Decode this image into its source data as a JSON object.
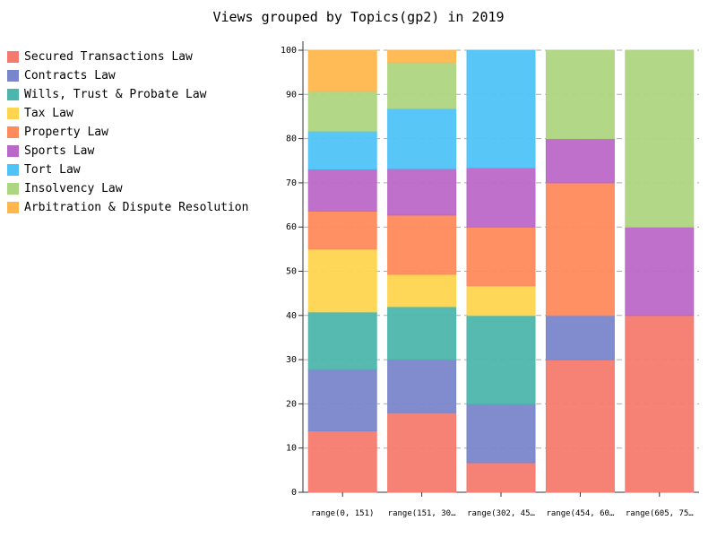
{
  "chart_data": {
    "type": "bar",
    "stacked": true,
    "title": "Views grouped by Topics(gp2) in 2019",
    "xlabel": "",
    "ylabel": "",
    "ylim": [
      0,
      100
    ],
    "yticks": [
      0,
      10,
      20,
      30,
      40,
      50,
      60,
      70,
      80,
      90,
      100
    ],
    "grid": true,
    "legend_position": "left",
    "categories": [
      "range(0, 151)",
      "range(151, 30…",
      "range(302, 45…",
      "range(454, 60…",
      "range(605, 75…"
    ],
    "series": [
      {
        "name": "Secured Transactions Law",
        "color": "#f57a6e",
        "values": [
          13.9,
          18.0,
          6.7,
          30.0,
          40.0
        ]
      },
      {
        "name": "Contracts Law",
        "color": "#7986cb",
        "values": [
          13.9,
          12.0,
          13.3,
          10.0,
          0
        ]
      },
      {
        "name": "Wills, Trust & Probate Law",
        "color": "#4db6ac",
        "values": [
          13.0,
          12.0,
          20.0,
          0,
          0
        ]
      },
      {
        "name": "Tax Law",
        "color": "#ffd54f",
        "values": [
          14.2,
          7.3,
          6.7,
          0,
          0
        ]
      },
      {
        "name": "Property Law",
        "color": "#ff8a5c",
        "values": [
          8.6,
          13.4,
          13.3,
          30.0,
          0
        ]
      },
      {
        "name": "Sports Law",
        "color": "#ba68c8",
        "values": [
          9.5,
          10.5,
          13.4,
          10.0,
          20.0
        ]
      },
      {
        "name": "Tort Law",
        "color": "#4fc3f7",
        "values": [
          8.6,
          13.6,
          26.6,
          0,
          0
        ]
      },
      {
        "name": "Insolvency Law",
        "color": "#aed581",
        "values": [
          9.0,
          10.4,
          0,
          20.0,
          40.0
        ]
      },
      {
        "name": "Arbitration & Dispute Resolution",
        "color": "#ffb74d",
        "values": [
          9.3,
          2.8,
          0,
          0,
          0
        ]
      }
    ]
  }
}
